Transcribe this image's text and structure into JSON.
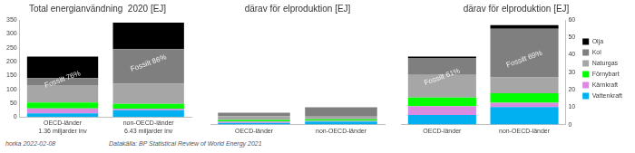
{
  "chart_data": [
    {
      "type": "bar",
      "title": "Total energianvändning  2020 [EJ]",
      "categories": [
        "OECD-länder\n1.36 miljarder inv",
        "non-OECD-länder\n6.43 miljarder inv"
      ],
      "series": [
        {
          "name": "Vattenkraft",
          "color": "#00b0f0",
          "values": [
            13,
            24
          ]
        },
        {
          "name": "Kärnkraft",
          "color": "#d98be0",
          "values": [
            18,
            6
          ]
        },
        {
          "name": "Förnybart",
          "color": "#00ff00",
          "values": [
            21,
            17
          ]
        },
        {
          "name": "Naturgas",
          "color": "#a6a6a6",
          "values": [
            63,
            73
          ]
        },
        {
          "name": "Kol",
          "color": "#7f7f7f",
          "values": [
            25,
            125
          ]
        },
        {
          "name": "Olja",
          "color": "#000000",
          "values": [
            78,
            95
          ]
        }
      ],
      "annotations": [
        "Fossilt 76%",
        "Fossilt 86%"
      ],
      "ylim": [
        0,
        350
      ],
      "yticks": [
        0,
        50,
        100,
        150,
        200,
        250,
        300,
        350
      ],
      "stacked": true,
      "grid": false
    },
    {
      "type": "bar",
      "title": "därav för elproduktion [EJ]",
      "categories": [
        "OECD-länder",
        "non-OECD-länder"
      ],
      "series": [
        {
          "name": "Vattenkraft",
          "color": "#00b0f0",
          "values": [
            5.5,
            10
          ]
        },
        {
          "name": "Kärnkraft",
          "color": "#d98be0",
          "values": [
            5,
            2.5
          ]
        },
        {
          "name": "Förnybart",
          "color": "#00ff00",
          "values": [
            5,
            5.5
          ]
        },
        {
          "name": "Naturgas",
          "color": "#a6a6a6",
          "values": [
            13,
            9
          ]
        },
        {
          "name": "Kol",
          "color": "#7f7f7f",
          "values": [
            9.5,
            28
          ]
        },
        {
          "name": "Olja",
          "color": "#000000",
          "values": [
            1,
            2
          ]
        }
      ],
      "ylim": [
        0,
        350
      ],
      "stacked": true,
      "grid": false,
      "tick_labels": "x"
    },
    {
      "type": "bar",
      "title": "därav för elproduktion [EJ]",
      "categories": [
        "OECD-länder",
        "non-OECD-länder"
      ],
      "series": [
        {
          "name": "Vattenkraft",
          "color": "#00b0f0",
          "values": [
            5.5,
            10
          ],
          "axis": "y2"
        },
        {
          "name": "Kärnkraft",
          "color": "#d98be0",
          "values": [
            5,
            2.5
          ],
          "axis": "y2"
        },
        {
          "name": "Förnybart",
          "color": "#00ff00",
          "values": [
            5,
            5.5
          ],
          "axis": "y2"
        },
        {
          "name": "Naturgas",
          "color": "#a6a6a6",
          "values": [
            13,
            9
          ],
          "axis": "y2"
        },
        {
          "name": "Kol",
          "color": "#7f7f7f",
          "values": [
            9.5,
            28
          ],
          "axis": "y2"
        },
        {
          "name": "Olja",
          "color": "#000000",
          "values": [
            1,
            2
          ],
          "axis": "y2"
        }
      ],
      "annotations": [
        "Fossilt 61%",
        "Fossilt 69%"
      ],
      "y2lim": [
        0,
        60
      ],
      "y2ticks": [
        0,
        10,
        20,
        30,
        40,
        50,
        60
      ],
      "stacked": true,
      "grid": false,
      "legend": "right"
    }
  ],
  "footer": {
    "left": "horka 2022-02-08",
    "right": "Datakälla: BP Statistical Review of World Energy 2021"
  }
}
